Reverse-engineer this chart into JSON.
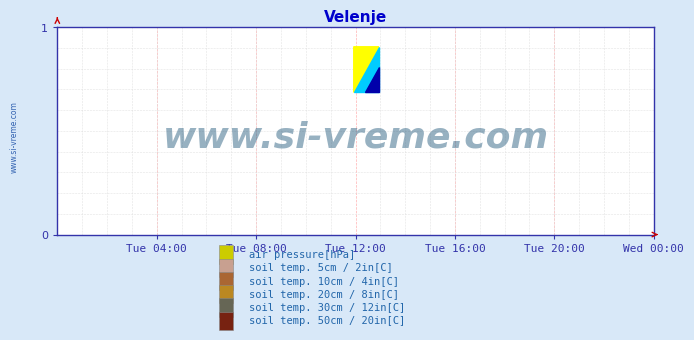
{
  "title": "Velenje",
  "title_color": "#0000cc",
  "title_fontsize": 11,
  "background_color": "#d8e8f8",
  "plot_bg_color": "#ffffff",
  "watermark_text": "www.si-vreme.com",
  "watermark_color": "#1a5276",
  "watermark_alpha": 0.45,
  "watermark_fontsize": 26,
  "ylim": [
    0,
    1
  ],
  "yticks": [
    0,
    1
  ],
  "grid_color_major": "#ffaaaa",
  "grid_color_minor": "#dddddd",
  "axis_color": "#3333aa",
  "tick_label_color": "#3366cc",
  "tick_fontsize": 8,
  "x_tick_labels": [
    "Tue 04:00",
    "Tue 08:00",
    "Tue 12:00",
    "Tue 16:00",
    "Tue 20:00",
    "Wed 00:00"
  ],
  "x_tick_positions": [
    0.1667,
    0.3333,
    0.5,
    0.6667,
    0.8333,
    1.0
  ],
  "sidebar_text": "www.si-vreme.com",
  "sidebar_color": "#2255aa",
  "sidebar_fontsize": 5.5,
  "legend_items": [
    {
      "label": "air pressure[hPa]",
      "color": "#cccc00"
    },
    {
      "label": "soil temp. 5cm / 2in[C]",
      "color": "#c8a090"
    },
    {
      "label": "soil temp. 10cm / 4in[C]",
      "color": "#aa6633"
    },
    {
      "label": "soil temp. 20cm / 8in[C]",
      "color": "#bb8822"
    },
    {
      "label": "soil temp. 30cm / 12in[C]",
      "color": "#666655"
    },
    {
      "label": "soil temp. 50cm / 20in[C]",
      "color": "#772211"
    }
  ],
  "legend_fontsize": 7.5,
  "legend_text_color": "#2266aa",
  "logo_colors": [
    "#ffff00",
    "#00ccff",
    "#0000aa"
  ],
  "arrow_color": "#cc0000"
}
